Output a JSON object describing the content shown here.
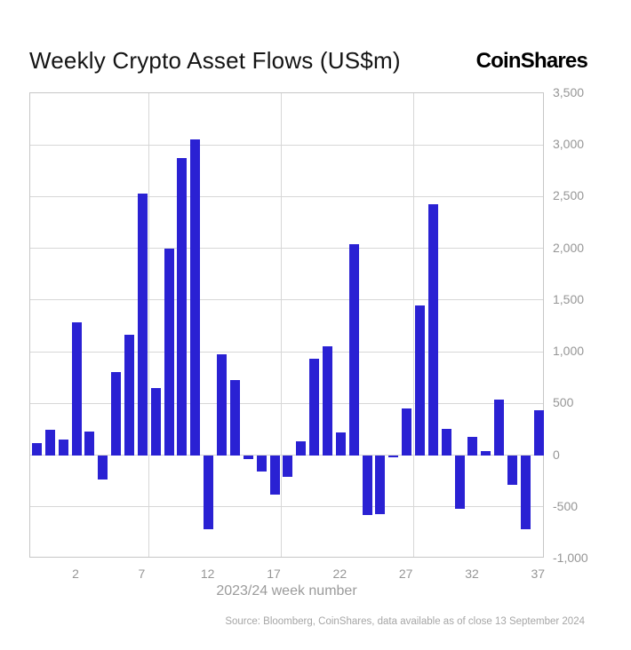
{
  "header": {
    "title": "Weekly Crypto Asset Flows (US$m)",
    "logo": "CoinShares"
  },
  "chart_data": {
    "type": "bar",
    "title": "Weekly Crypto Asset Flows (US$m)",
    "xlabel": "2023/24 week number",
    "ylabel": "",
    "x": [
      -1,
      0,
      1,
      2,
      3,
      4,
      5,
      6,
      7,
      8,
      9,
      10,
      11,
      12,
      13,
      14,
      15,
      16,
      17,
      18,
      19,
      20,
      21,
      22,
      23,
      24,
      25,
      26,
      27,
      28,
      29,
      30,
      31,
      32,
      33,
      34,
      35,
      36,
      37
    ],
    "values": [
      120,
      245,
      155,
      1285,
      225,
      -235,
      805,
      1160,
      2530,
      645,
      2000,
      2870,
      3055,
      -720,
      975,
      725,
      -35,
      -155,
      -380,
      -210,
      135,
      930,
      1050,
      220,
      2040,
      -580,
      -570,
      -25,
      450,
      1445,
      2430,
      250,
      -515,
      175,
      40,
      535,
      -290,
      -720,
      435
    ],
    "ylim": [
      -1000,
      3500
    ],
    "ytick_interval": 500,
    "yticks": [
      {
        "v": 3500,
        "label": "3,500"
      },
      {
        "v": 3000,
        "label": "3,000"
      },
      {
        "v": 2500,
        "label": "2,500"
      },
      {
        "v": 2000,
        "label": "2,000"
      },
      {
        "v": 1500,
        "label": "1,500"
      },
      {
        "v": 1000,
        "label": "1,000"
      },
      {
        "v": 500,
        "label": "500"
      },
      {
        "v": 0,
        "label": "0"
      },
      {
        "v": -500,
        "label": "-500"
      },
      {
        "v": -1000,
        "label": "-1,000"
      }
    ],
    "xticks": [
      2,
      7,
      12,
      17,
      22,
      27,
      32,
      37
    ],
    "xlim_weeks": [
      -1.5,
      37.45
    ],
    "vgrid_weeks": [
      7.5,
      17.5,
      27.5
    ],
    "grid": true,
    "legend_position": "none",
    "bar_color": "#2a21d3",
    "grid_color": "#d7d7d7",
    "frame_color": "#c6c6c6",
    "tick_label_color": "#969696",
    "source": "Source: Bloomberg, CoinShares, data available as of close 13 September 2024"
  }
}
